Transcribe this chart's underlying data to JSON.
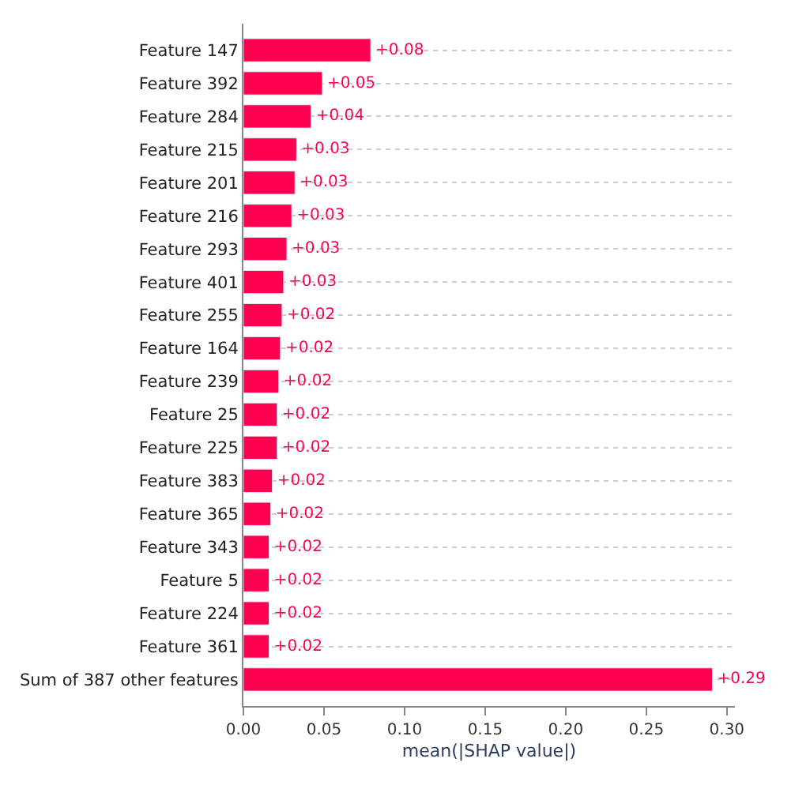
{
  "chart_data": {
    "type": "bar",
    "orientation": "horizontal",
    "xlabel": "mean(|SHAP value|)",
    "categories": [
      "Feature 147",
      "Feature 392",
      "Feature 284",
      "Feature 215",
      "Feature 201",
      "Feature 216",
      "Feature 293",
      "Feature 401",
      "Feature 255",
      "Feature 164",
      "Feature 239",
      "Feature 25",
      "Feature 225",
      "Feature 383",
      "Feature 365",
      "Feature 343",
      "Feature 5",
      "Feature 224",
      "Feature 361",
      "Sum of 387 other features"
    ],
    "values": [
      0.079,
      0.049,
      0.042,
      0.033,
      0.032,
      0.03,
      0.027,
      0.025,
      0.024,
      0.023,
      0.022,
      0.021,
      0.021,
      0.018,
      0.017,
      0.016,
      0.016,
      0.016,
      0.016,
      0.291
    ],
    "value_labels": [
      "+0.08",
      "+0.05",
      "+0.04",
      "+0.03",
      "+0.03",
      "+0.03",
      "+0.03",
      "+0.03",
      "+0.02",
      "+0.02",
      "+0.02",
      "+0.02",
      "+0.02",
      "+0.02",
      "+0.02",
      "+0.02",
      "+0.02",
      "+0.02",
      "+0.02",
      "+0.29"
    ],
    "color": "#ff0051",
    "xlim": [
      0,
      0.305
    ],
    "xticks": [
      {
        "value": 0,
        "label": "0.00"
      },
      {
        "value": 0.05,
        "label": "0.05"
      },
      {
        "value": 0.1,
        "label": "0.10"
      },
      {
        "value": 0.15,
        "label": "0.15"
      },
      {
        "value": 0.2,
        "label": "0.20"
      },
      {
        "value": 0.25,
        "label": "0.25"
      },
      {
        "value": 0.3,
        "label": "0.30"
      }
    ],
    "grid": "y",
    "legend": false
  }
}
